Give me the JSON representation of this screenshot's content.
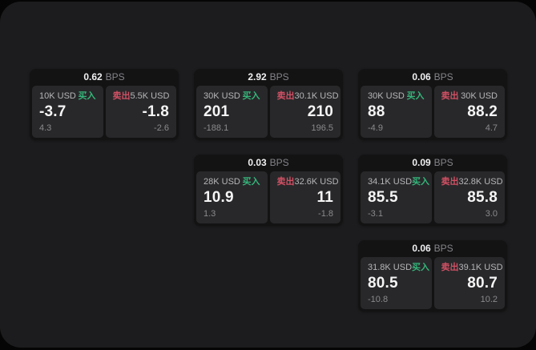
{
  "labels": {
    "bps_unit": "BPS",
    "buy": "买入",
    "sell": "卖出"
  },
  "colors": {
    "buy": "#35b57a",
    "sell": "#d15064",
    "surface_bg": "#1c1c1e",
    "card_bg": "#131314",
    "panel_bg": "#28282a"
  },
  "cards": [
    {
      "col": 1,
      "row": 1,
      "bps": "0.62",
      "buy": {
        "notional": "10K USD",
        "price": "-3.7",
        "delta": "4.3"
      },
      "sell": {
        "notional": "5.5K USD",
        "price": "-1.8",
        "delta": "-2.6"
      }
    },
    {
      "col": 2,
      "row": 1,
      "bps": "2.92",
      "buy": {
        "notional": "30K USD",
        "price": "201",
        "delta": "-188.1"
      },
      "sell": {
        "notional": "30.1K USD",
        "price": "210",
        "delta": "196.5"
      }
    },
    {
      "col": 3,
      "row": 1,
      "bps": "0.06",
      "buy": {
        "notional": "30K USD",
        "price": "88",
        "delta": "-4.9"
      },
      "sell": {
        "notional": "30K USD",
        "price": "88.2",
        "delta": "4.7"
      }
    },
    {
      "col": 2,
      "row": 2,
      "bps": "0.03",
      "buy": {
        "notional": "28K USD",
        "price": "10.9",
        "delta": "1.3"
      },
      "sell": {
        "notional": "32.6K USD",
        "price": "11",
        "delta": "-1.8"
      }
    },
    {
      "col": 3,
      "row": 2,
      "bps": "0.09",
      "buy": {
        "notional": "34.1K USD",
        "price": "85.5",
        "delta": "-3.1"
      },
      "sell": {
        "notional": "32.8K USD",
        "price": "85.8",
        "delta": "3.0"
      }
    },
    {
      "col": 3,
      "row": 3,
      "bps": "0.06",
      "buy": {
        "notional": "31.8K USD",
        "price": "80.5",
        "delta": "-10.8"
      },
      "sell": {
        "notional": "39.1K USD",
        "price": "80.7",
        "delta": "10.2"
      }
    }
  ]
}
